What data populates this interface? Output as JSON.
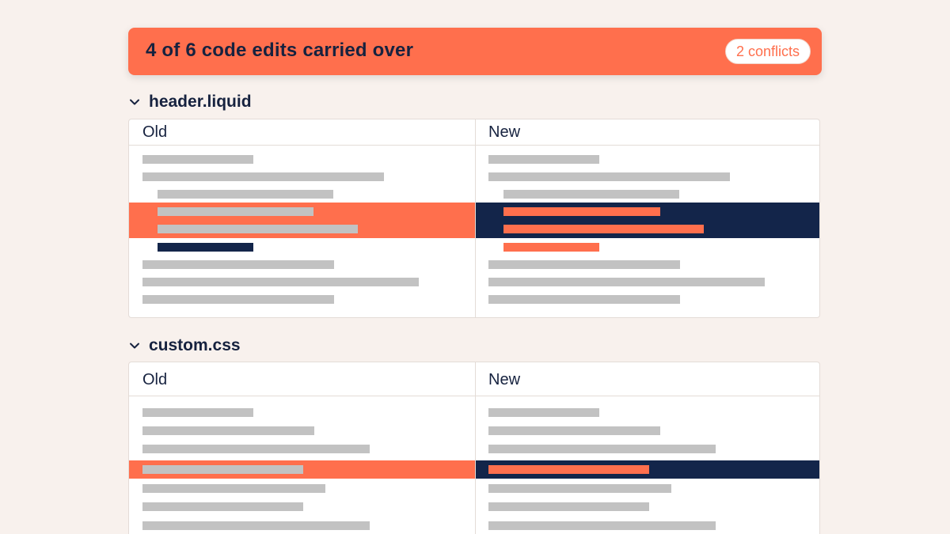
{
  "banner": {
    "title": "4 of 6 code edits carried over",
    "conflict_badge": "2 conflicts"
  },
  "colors": {
    "accent": "#ff6f4d",
    "navy": "#13254a",
    "placeholder": "#c2c2c2",
    "background": "#f8f1ed"
  },
  "files": [
    {
      "name": "header.liquid",
      "old_label": "Old",
      "new_label": "New",
      "expanded": true
    },
    {
      "name": "custom.css",
      "old_label": "Old",
      "new_label": "New",
      "expanded": true
    }
  ]
}
